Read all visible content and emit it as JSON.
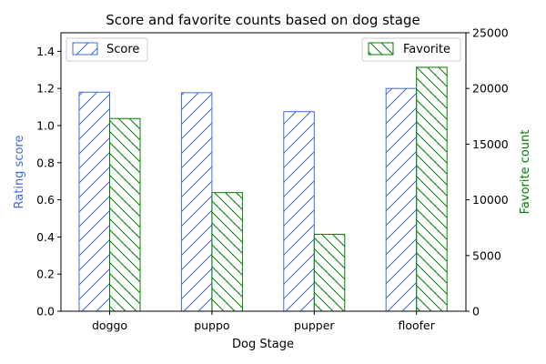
{
  "chart_data": {
    "type": "bar",
    "title": "Score and favorite counts based on dog stage",
    "xlabel": "Dog Stage",
    "categories": [
      "doggo",
      "puppo",
      "pupper",
      "floofer"
    ],
    "series": [
      {
        "name": "Score",
        "axis": "left",
        "values": [
          1.18,
          1.177,
          1.075,
          1.2
        ],
        "edge_color": "#4169e1",
        "hatch": "forward-diagonal"
      },
      {
        "name": "Favorite",
        "axis": "right",
        "values": [
          17300,
          10650,
          6900,
          21900
        ],
        "edge_color": "#008000",
        "hatch": "back-diagonal"
      }
    ],
    "left_axis": {
      "label": "Rating score",
      "label_color": "#4169e1",
      "ylim": [
        0,
        1.5
      ],
      "ticks": [
        "0.0",
        "0.2",
        "0.4",
        "0.6",
        "0.8",
        "1.0",
        "1.2",
        "1.4"
      ],
      "tick_values": [
        0,
        0.2,
        0.4,
        0.6,
        0.8,
        1.0,
        1.2,
        1.4
      ]
    },
    "right_axis": {
      "label": "Favorite count",
      "label_color": "#008000",
      "ylim": [
        0,
        25000
      ],
      "ticks": [
        "0",
        "5000",
        "10000",
        "15000",
        "20000",
        "25000"
      ],
      "tick_values": [
        0,
        5000,
        10000,
        15000,
        20000,
        25000
      ]
    },
    "legend": {
      "score_placement": "top-left",
      "favorite_placement": "top-right"
    },
    "grid": false
  }
}
